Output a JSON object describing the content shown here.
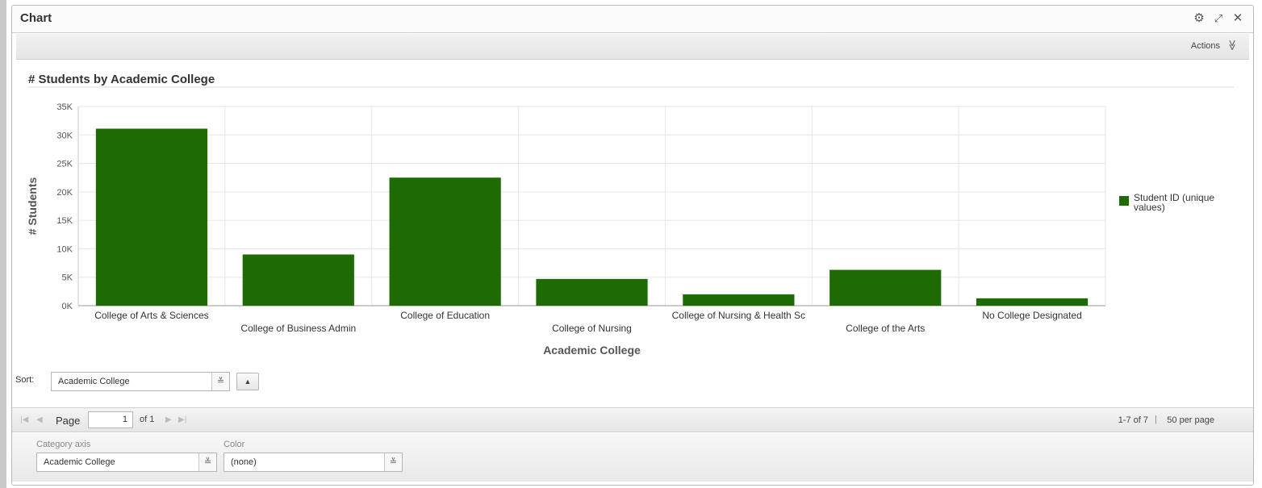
{
  "window": {
    "title": "Chart",
    "icons": [
      "gear-icon",
      "expand-icon",
      "close-icon"
    ],
    "close_glyph": "✕",
    "gear_glyph": "⚙",
    "expand_glyph": "⤢"
  },
  "actions": {
    "label": "Actions",
    "caret": "≫"
  },
  "chart_data": {
    "type": "bar",
    "title": "# Students by Academic College",
    "xlabel": "Academic College",
    "ylabel": "# Students",
    "categories": [
      "College of Arts & Sciences",
      "College of Business Admin",
      "College of Education",
      "College of Nursing",
      "College of Nursing & Health Sc",
      "College of the Arts",
      "No College Designated"
    ],
    "series": [
      {
        "name": "Student ID (unique values)",
        "color": "#1e6a05",
        "values": [
          31100,
          9000,
          22500,
          4700,
          2000,
          6300,
          1300
        ]
      }
    ],
    "ylim": [
      0,
      35000
    ],
    "yticks": [
      "0K",
      "5K",
      "10K",
      "15K",
      "20K",
      "25K",
      "30K",
      "35K"
    ],
    "grid": true,
    "legend": "right"
  },
  "sort": {
    "label": "Sort:",
    "value": "Academic College",
    "direction_glyph": "▲"
  },
  "pager": {
    "page_label": "Page",
    "page_value": "1",
    "of_text": "of 1",
    "range": "1-7 of 7",
    "separator": "|",
    "per_page": "50 per page"
  },
  "config": {
    "category_axis_label": "Category axis",
    "category_axis_value": "Academic College",
    "color_label": "Color",
    "color_value": "(none)"
  }
}
